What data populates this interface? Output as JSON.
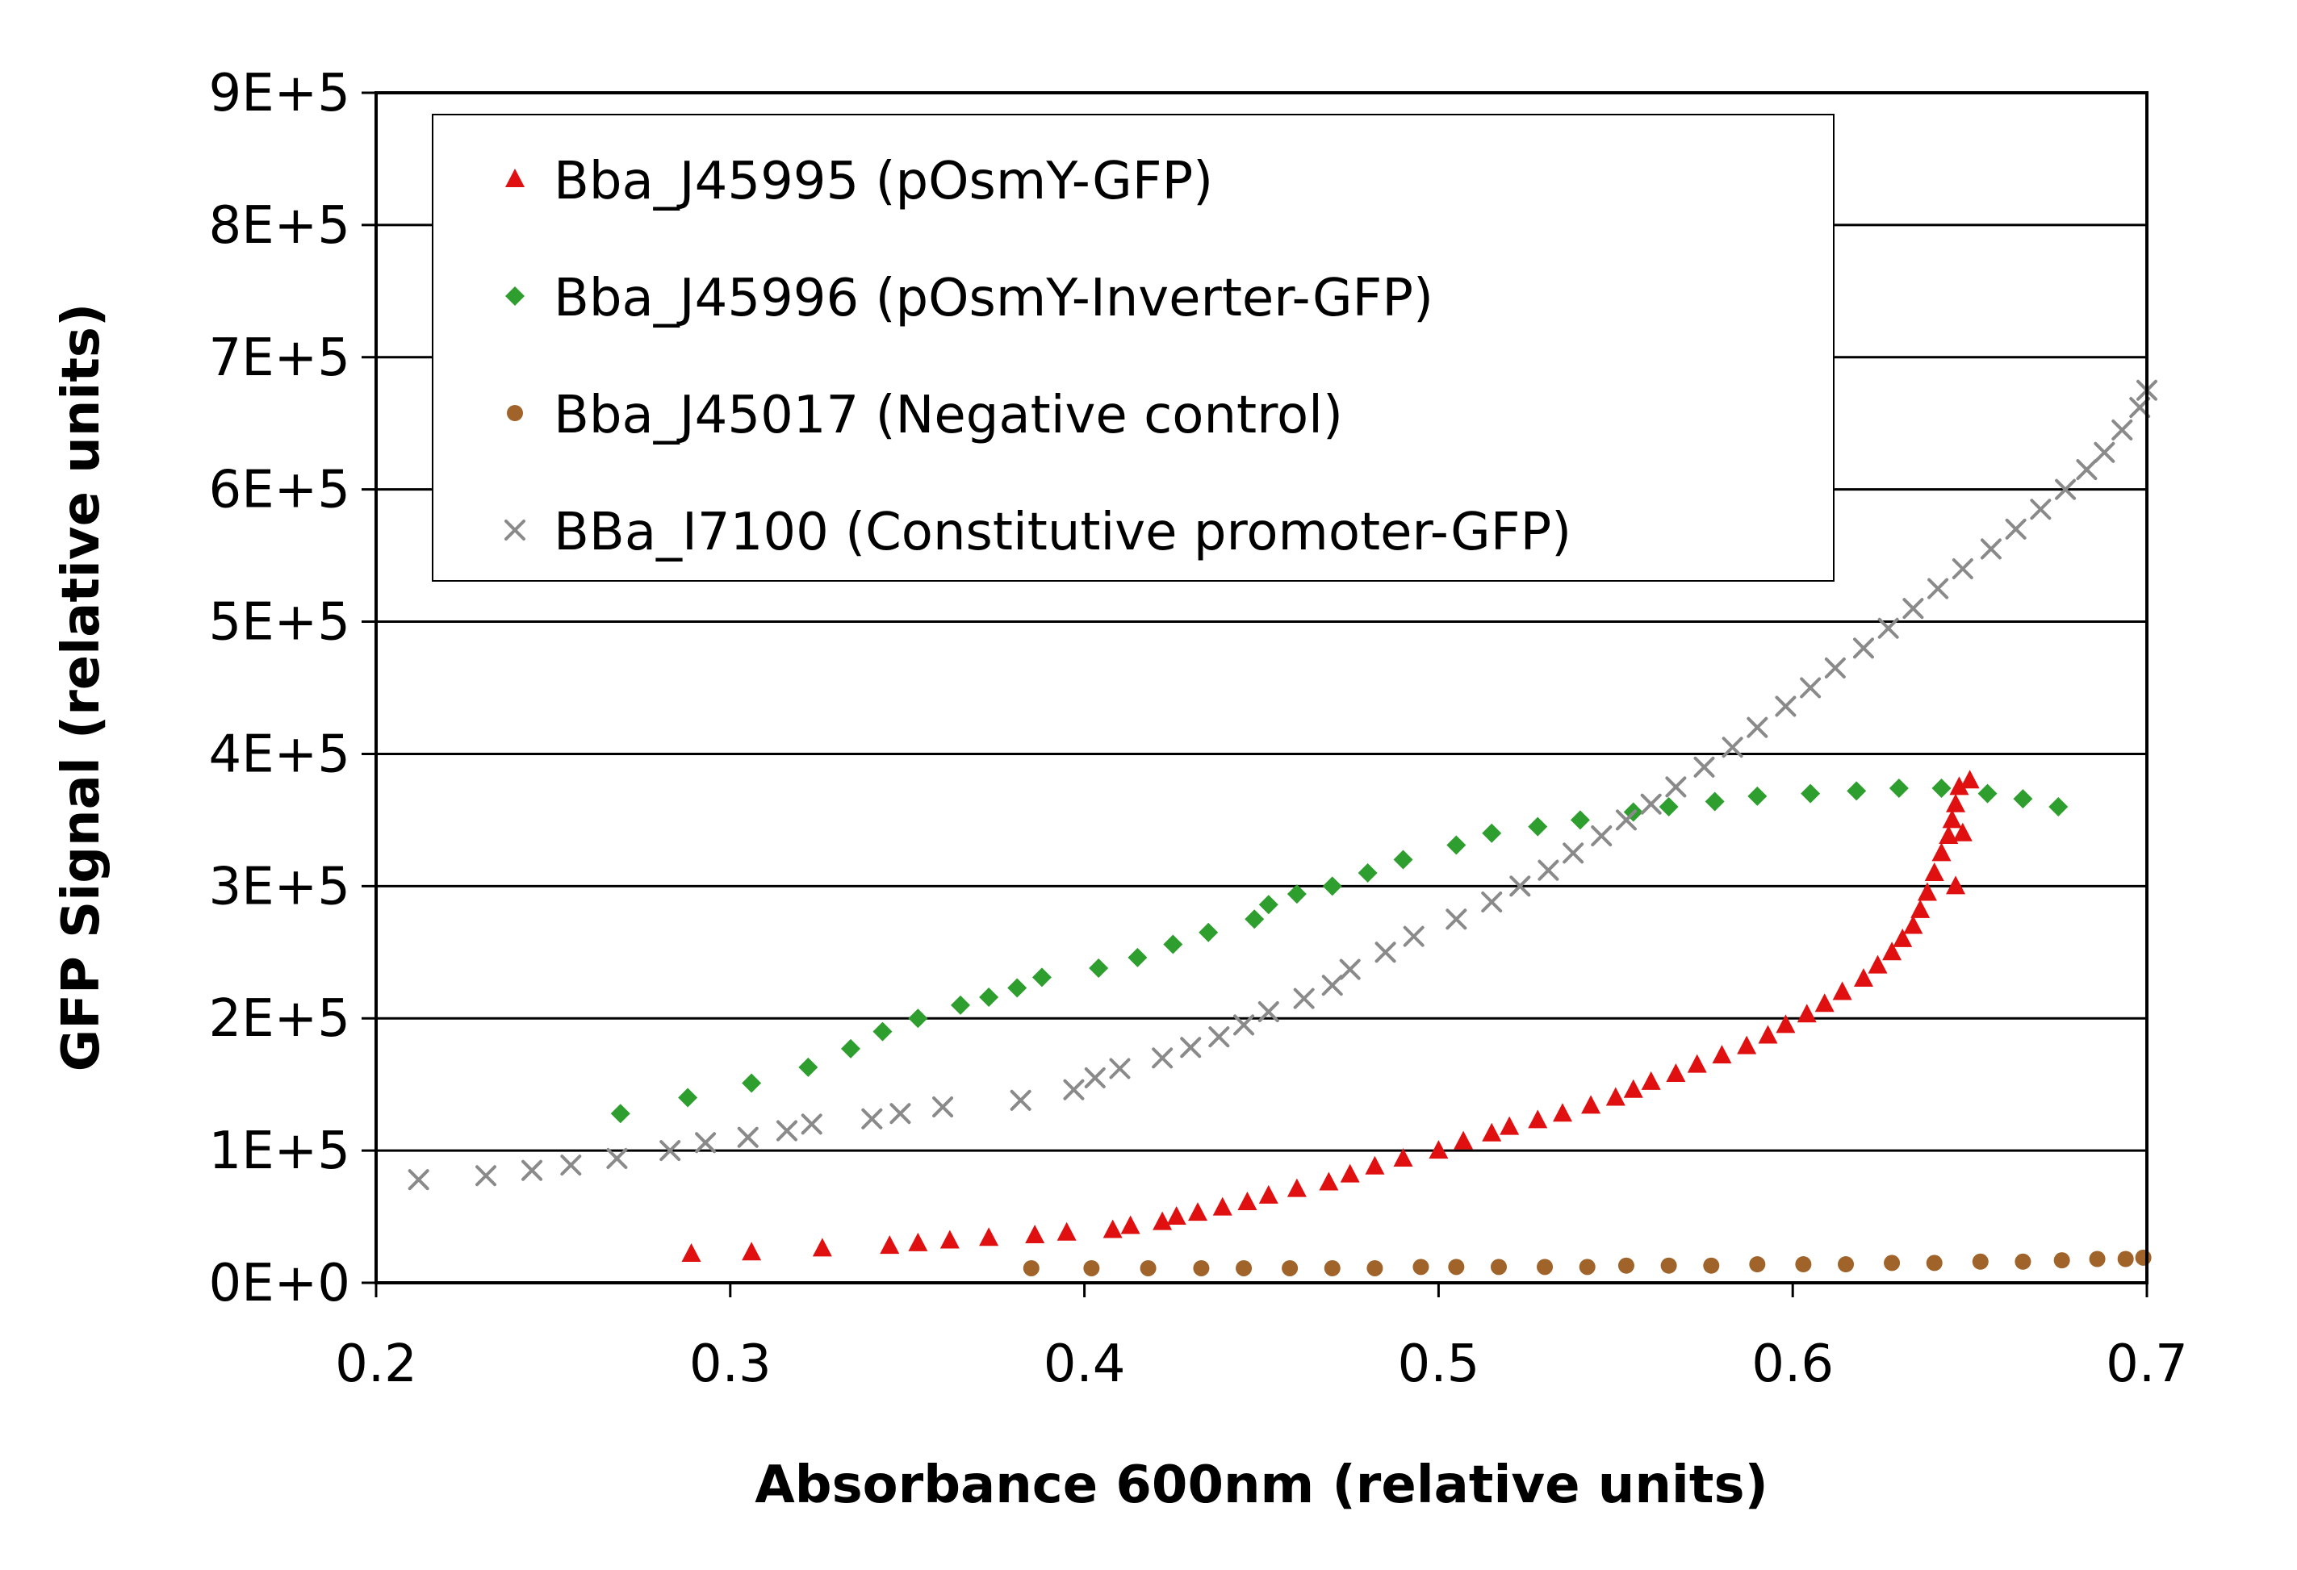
{
  "chart_data": {
    "type": "scatter",
    "title": "",
    "xlabel": "Absorbance 600nm (relative units)",
    "ylabel": "GFP Signal (relative units)",
    "xlim": [
      0.2,
      0.7
    ],
    "ylim": [
      0,
      900000
    ],
    "xticks": [
      0.2,
      0.3,
      0.4,
      0.5,
      0.6,
      0.7
    ],
    "xtick_labels": [
      "0.2",
      "0.3",
      "0.4",
      "0.5",
      "0.6",
      "0.7"
    ],
    "yticks": [
      0,
      100000,
      200000,
      300000,
      400000,
      500000,
      600000,
      700000,
      800000,
      900000
    ],
    "ytick_labels": [
      "0E+0",
      "1E+5",
      "2E+5",
      "3E+5",
      "4E+5",
      "5E+5",
      "6E+5",
      "7E+5",
      "8E+5",
      "9E+5"
    ],
    "grid": "horizontal major gridlines",
    "legend_position": "top-left inside plot",
    "series": [
      {
        "name": "Bba_J45995 (pOsmY-GFP)",
        "marker": "triangle",
        "color": "#E01010",
        "points": [
          [
            0.289,
            22000
          ],
          [
            0.306,
            23000
          ],
          [
            0.326,
            26000
          ],
          [
            0.345,
            28000
          ],
          [
            0.353,
            30000
          ],
          [
            0.362,
            32000
          ],
          [
            0.373,
            34000
          ],
          [
            0.386,
            36000
          ],
          [
            0.395,
            38000
          ],
          [
            0.408,
            40000
          ],
          [
            0.413,
            43000
          ],
          [
            0.422,
            46000
          ],
          [
            0.426,
            50000
          ],
          [
            0.432,
            53000
          ],
          [
            0.439,
            57000
          ],
          [
            0.446,
            61000
          ],
          [
            0.452,
            66000
          ],
          [
            0.46,
            71000
          ],
          [
            0.469,
            76000
          ],
          [
            0.475,
            82000
          ],
          [
            0.482,
            88000
          ],
          [
            0.49,
            94000
          ],
          [
            0.5,
            100000
          ],
          [
            0.507,
            107000
          ],
          [
            0.515,
            113000
          ],
          [
            0.52,
            118000
          ],
          [
            0.528,
            123000
          ],
          [
            0.535,
            128000
          ],
          [
            0.543,
            134000
          ],
          [
            0.55,
            140000
          ],
          [
            0.555,
            146000
          ],
          [
            0.56,
            152000
          ],
          [
            0.567,
            158000
          ],
          [
            0.573,
            165000
          ],
          [
            0.58,
            172000
          ],
          [
            0.587,
            179000
          ],
          [
            0.593,
            187000
          ],
          [
            0.598,
            195000
          ],
          [
            0.604,
            203000
          ],
          [
            0.609,
            211000
          ],
          [
            0.614,
            220000
          ],
          [
            0.62,
            230000
          ],
          [
            0.624,
            240000
          ],
          [
            0.628,
            250000
          ],
          [
            0.631,
            260000
          ],
          [
            0.634,
            270000
          ],
          [
            0.636,
            282000
          ],
          [
            0.638,
            295000
          ],
          [
            0.64,
            310000
          ],
          [
            0.642,
            325000
          ],
          [
            0.644,
            338000
          ],
          [
            0.645,
            350000
          ],
          [
            0.646,
            362000
          ],
          [
            0.647,
            375000
          ],
          [
            0.65,
            380000
          ],
          [
            0.648,
            340000
          ],
          [
            0.646,
            300000
          ]
        ]
      },
      {
        "name": "Bba_J45996 (pOsmY-Inverter-GFP)",
        "marker": "diamond",
        "color": "#2E9E2E",
        "points": [
          [
            0.269,
            128000
          ],
          [
            0.288,
            140000
          ],
          [
            0.306,
            151000
          ],
          [
            0.322,
            163000
          ],
          [
            0.334,
            177000
          ],
          [
            0.343,
            190000
          ],
          [
            0.353,
            200000
          ],
          [
            0.365,
            210000
          ],
          [
            0.373,
            216000
          ],
          [
            0.381,
            223000
          ],
          [
            0.388,
            231000
          ],
          [
            0.404,
            238000
          ],
          [
            0.415,
            246000
          ],
          [
            0.425,
            256000
          ],
          [
            0.435,
            265000
          ],
          [
            0.448,
            275000
          ],
          [
            0.452,
            286000
          ],
          [
            0.46,
            294000
          ],
          [
            0.47,
            300000
          ],
          [
            0.48,
            310000
          ],
          [
            0.49,
            320000
          ],
          [
            0.505,
            331000
          ],
          [
            0.515,
            340000
          ],
          [
            0.528,
            345000
          ],
          [
            0.54,
            350000
          ],
          [
            0.555,
            356000
          ],
          [
            0.565,
            360000
          ],
          [
            0.578,
            364000
          ],
          [
            0.59,
            368000
          ],
          [
            0.605,
            370000
          ],
          [
            0.618,
            372000
          ],
          [
            0.63,
            374000
          ],
          [
            0.642,
            374000
          ],
          [
            0.655,
            370000
          ],
          [
            0.665,
            366000
          ],
          [
            0.675,
            360000
          ]
        ]
      },
      {
        "name": "Bba_J45017 (Negative control)",
        "marker": "circle",
        "color": "#A0642A",
        "points": [
          [
            0.385,
            11000
          ],
          [
            0.402,
            11000
          ],
          [
            0.418,
            11000
          ],
          [
            0.433,
            11000
          ],
          [
            0.445,
            11000
          ],
          [
            0.458,
            11000
          ],
          [
            0.47,
            11000
          ],
          [
            0.482,
            11000
          ],
          [
            0.495,
            12000
          ],
          [
            0.505,
            12000
          ],
          [
            0.517,
            12000
          ],
          [
            0.53,
            12000
          ],
          [
            0.542,
            12000
          ],
          [
            0.553,
            13000
          ],
          [
            0.565,
            13000
          ],
          [
            0.577,
            13000
          ],
          [
            0.59,
            14000
          ],
          [
            0.603,
            14000
          ],
          [
            0.615,
            14000
          ],
          [
            0.628,
            15000
          ],
          [
            0.64,
            15000
          ],
          [
            0.653,
            16000
          ],
          [
            0.665,
            16000
          ],
          [
            0.676,
            17000
          ],
          [
            0.686,
            18000
          ],
          [
            0.694,
            18000
          ],
          [
            0.699,
            19000
          ]
        ]
      },
      {
        "name": "BBa_I7100 (Constitutive promoter-GFP)",
        "marker": "cross",
        "color": "#8A8A8A",
        "points": [
          [
            0.212,
            78000
          ],
          [
            0.231,
            81000
          ],
          [
            0.244,
            85000
          ],
          [
            0.255,
            89000
          ],
          [
            0.268,
            94000
          ],
          [
            0.283,
            100000
          ],
          [
            0.293,
            106000
          ],
          [
            0.305,
            110000
          ],
          [
            0.316,
            115000
          ],
          [
            0.323,
            120000
          ],
          [
            0.34,
            124000
          ],
          [
            0.348,
            128000
          ],
          [
            0.36,
            133000
          ],
          [
            0.382,
            138000
          ],
          [
            0.397,
            146000
          ],
          [
            0.403,
            155000
          ],
          [
            0.41,
            162000
          ],
          [
            0.422,
            170000
          ],
          [
            0.43,
            178000
          ],
          [
            0.438,
            186000
          ],
          [
            0.445,
            195000
          ],
          [
            0.452,
            205000
          ],
          [
            0.462,
            215000
          ],
          [
            0.47,
            225000
          ],
          [
            0.475,
            237000
          ],
          [
            0.485,
            250000
          ],
          [
            0.493,
            262000
          ],
          [
            0.505,
            275000
          ],
          [
            0.515,
            288000
          ],
          [
            0.523,
            300000
          ],
          [
            0.531,
            312000
          ],
          [
            0.538,
            325000
          ],
          [
            0.546,
            338000
          ],
          [
            0.553,
            350000
          ],
          [
            0.56,
            362000
          ],
          [
            0.567,
            375000
          ],
          [
            0.575,
            390000
          ],
          [
            0.583,
            405000
          ],
          [
            0.59,
            420000
          ],
          [
            0.598,
            436000
          ],
          [
            0.605,
            450000
          ],
          [
            0.612,
            465000
          ],
          [
            0.62,
            480000
          ],
          [
            0.627,
            495000
          ],
          [
            0.634,
            510000
          ],
          [
            0.641,
            525000
          ],
          [
            0.648,
            540000
          ],
          [
            0.656,
            555000
          ],
          [
            0.663,
            570000
          ],
          [
            0.67,
            585000
          ],
          [
            0.677,
            600000
          ],
          [
            0.683,
            615000
          ],
          [
            0.688,
            628000
          ],
          [
            0.693,
            645000
          ],
          [
            0.698,
            662000
          ],
          [
            0.7,
            675000
          ]
        ]
      }
    ]
  }
}
